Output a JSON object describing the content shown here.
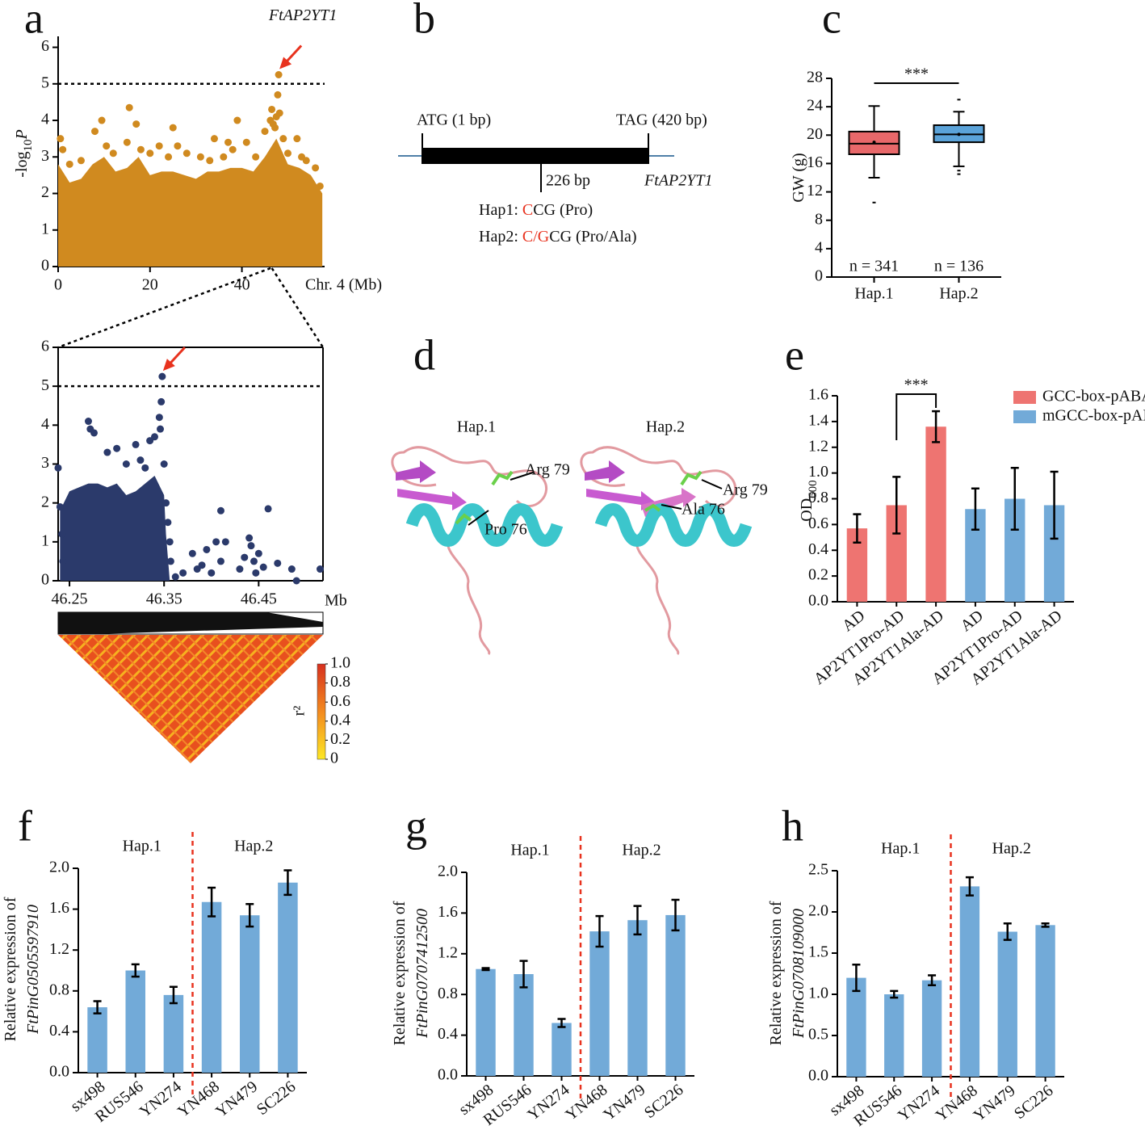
{
  "chart_data": [
    {
      "panel": "a",
      "type": "scatter",
      "ylabel": [
        {
          "text": "-log"
        },
        {
          "text": "10",
          "style": "sub"
        },
        {
          "text": "P",
          "style": "italic"
        }
      ],
      "xlabel": "Chr. 4 (Mb)",
      "xlim": [
        0,
        58
      ],
      "ylim": [
        0,
        6.3
      ],
      "xticks": [
        0,
        20,
        40
      ],
      "yticks": [
        0,
        1,
        2,
        3,
        4,
        5,
        6
      ],
      "threshold": 5,
      "annotation": "FtAP2YT1",
      "color": "#d08a1f",
      "band": {
        "x": [
          0,
          2.5,
          5,
          7.5,
          10,
          12.5,
          15,
          17.5,
          20,
          22.5,
          25,
          27.5,
          30,
          32.5,
          35,
          37.5,
          40,
          42.5,
          45,
          47.5,
          50,
          52.5,
          55,
          57.5
        ],
        "values": [
          2.8,
          2.3,
          2.4,
          2.8,
          3.0,
          2.6,
          2.7,
          3.0,
          2.5,
          2.6,
          2.6,
          2.5,
          2.4,
          2.6,
          2.6,
          2.7,
          2.7,
          2.6,
          3.0,
          3.5,
          2.8,
          2.7,
          2.5,
          2.0
        ]
      },
      "points": {
        "x": [
          0.5,
          1,
          2.5,
          5,
          8,
          9.5,
          10.5,
          12,
          15,
          15.5,
          17,
          18,
          20,
          22,
          24,
          25,
          26,
          28,
          31,
          33,
          34,
          36,
          37,
          38,
          39,
          41,
          43,
          45,
          46.2,
          46.5,
          46.8,
          47.2,
          47.5,
          47.8,
          48,
          48.2,
          49,
          50,
          52,
          53,
          54,
          56,
          57
        ],
        "values": [
          3.5,
          3.2,
          2.8,
          2.9,
          3.7,
          4.0,
          3.3,
          3.1,
          3.4,
          4.35,
          3.9,
          3.2,
          3.1,
          3.3,
          3.0,
          3.8,
          3.3,
          3.1,
          3.0,
          2.9,
          3.5,
          3.0,
          3.4,
          3.2,
          4.0,
          3.4,
          3.0,
          3.7,
          4.0,
          4.3,
          3.9,
          3.8,
          4.1,
          4.7,
          5.25,
          4.2,
          3.5,
          3.1,
          3.5,
          3.0,
          2.9,
          2.7,
          2.2
        ]
      }
    },
    {
      "type": "scatter",
      "frame": "box",
      "xlabel": "Mb",
      "xlim": [
        46.238,
        46.518
      ],
      "ylim": [
        0,
        6
      ],
      "xticks": [
        46.25,
        46.35,
        46.45
      ],
      "yticks": [
        0,
        1,
        2,
        3,
        4,
        5,
        6
      ],
      "threshold": 5,
      "color": "#2b3a6b",
      "band": {
        "x": [
          46.24,
          46.25,
          46.26,
          46.27,
          46.28,
          46.29,
          46.3,
          46.31,
          46.32,
          46.33,
          46.34,
          46.35,
          46.352,
          46.356
        ],
        "values": [
          1.8,
          2.3,
          2.4,
          2.5,
          2.5,
          2.4,
          2.5,
          2.2,
          2.3,
          2.5,
          2.7,
          2.2,
          1.2,
          0
        ]
      },
      "points": {
        "x": [
          46.238,
          46.24,
          46.242,
          46.243,
          46.27,
          46.272,
          46.276,
          46.29,
          46.3,
          46.31,
          46.32,
          46.325,
          46.33,
          46.335,
          46.34,
          46.345,
          46.347,
          46.348,
          46.346,
          46.35,
          46.352,
          46.354,
          46.356,
          46.357,
          46.362,
          46.37,
          46.38,
          46.385,
          46.39,
          46.395,
          46.4,
          46.405,
          46.41,
          46.41,
          46.415,
          46.43,
          46.435,
          46.44,
          46.442,
          46.445,
          46.447,
          46.45,
          46.455,
          46.46,
          46.47,
          46.485,
          46.49,
          46.515
        ],
        "values": [
          2.9,
          1.9,
          1.2,
          0.5,
          4.1,
          3.9,
          3.8,
          3.3,
          3.4,
          3.0,
          3.5,
          3.1,
          2.9,
          3.6,
          3.7,
          4.2,
          4.6,
          5.25,
          3.9,
          3.0,
          2.0,
          1.5,
          1.0,
          0.5,
          0.1,
          0.2,
          0.7,
          0.3,
          0.4,
          0.8,
          0.2,
          1.0,
          0.5,
          1.8,
          1.0,
          0.3,
          0.6,
          1.1,
          0.9,
          0.5,
          0.2,
          0.7,
          0.35,
          1.85,
          0.45,
          0.3,
          0,
          0.3
        ]
      }
    },
    {
      "panel": "c",
      "type": "box",
      "ylabel": [
        {
          "text": "GW (g)"
        }
      ],
      "categories": [
        "Hap.1",
        "Hap.2"
      ],
      "colors": [
        "#e8686a",
        "#5ba3d9"
      ],
      "boxes": [
        {
          "min": 14,
          "q1": 17.3,
          "median": 18.8,
          "q3": 20.5,
          "max": 24.1,
          "mean": 19.0,
          "outliers": [
            10.5
          ]
        },
        {
          "min": 15.6,
          "q1": 19,
          "median": 20.1,
          "q3": 21.4,
          "max": 23.3,
          "mean": 20.1,
          "outliers": [
            14.5,
            15.0,
            25.0
          ]
        }
      ],
      "n_labels": [
        "n = 341",
        "n = 136"
      ],
      "significance": "***",
      "ylim": [
        0,
        28
      ],
      "yticks": [
        0,
        4,
        8,
        12,
        16,
        20,
        24,
        28
      ]
    },
    {
      "panel": "e",
      "type": "bar",
      "ylabel": [
        {
          "text": "OD"
        },
        {
          "text": "600",
          "style": "sub"
        }
      ],
      "categories": [
        "AD",
        "AP2YT1Pro-AD",
        "AP2YT1Ala-AD",
        "AD",
        "AP2YT1Pro-AD",
        "AP2YT1Ala-AD"
      ],
      "series": [
        {
          "name": "GCC-box-pABAi",
          "color": "#ee7471",
          "values": [
            0.57,
            0.75,
            1.36,
            null,
            null,
            null
          ],
          "errors": [
            0.11,
            0.22,
            0.12,
            null,
            null,
            null
          ]
        },
        {
          "name": "mGCC-box-pABAi",
          "color": "#72aad8",
          "values": [
            null,
            null,
            null,
            0.72,
            0.8,
            0.75
          ],
          "errors": [
            null,
            null,
            null,
            0.16,
            0.24,
            0.26
          ]
        }
      ],
      "significance": "***",
      "ylim": [
        0,
        1.6
      ],
      "yticks": [
        {
          "value": 0,
          "label": "0.0"
        },
        0.2,
        0.4,
        0.6,
        0.8,
        {
          "value": 1,
          "label": "1.0"
        },
        1.2,
        1.4,
        1.6
      ]
    },
    {
      "panel": "f",
      "type": "bar",
      "ylabel": [
        {
          "text": "Relative expression of"
        },
        {
          "text": "FtPinG0505597910",
          "style": "italic line"
        }
      ],
      "categories": [
        "sx498",
        "RUS546",
        "YN274",
        "YN468",
        "YN479",
        "SC226"
      ],
      "group_labels": [
        "Hap.1",
        "Hap.2"
      ],
      "divider_color": "#e8321e",
      "series": [
        {
          "color": "#72aad8",
          "values": [
            0.64,
            1.0,
            0.76,
            1.67,
            1.54,
            1.86
          ],
          "errors": [
            0.06,
            0.06,
            0.08,
            0.14,
            0.11,
            0.12
          ]
        }
      ],
      "ylim": [
        0,
        2
      ],
      "yticks": [
        {
          "value": 0,
          "label": "0.0"
        },
        0.4,
        0.8,
        1.2,
        1.6,
        {
          "value": 2,
          "label": "2.0"
        }
      ]
    },
    {
      "panel": "g",
      "type": "bar",
      "ylabel": [
        {
          "text": "Relative expression of"
        },
        {
          "text": "FtPinG0707412500",
          "style": "italic line"
        }
      ],
      "categories": [
        "sx498",
        "RUS546",
        "YN274",
        "YN468",
        "YN479",
        "SC226"
      ],
      "group_labels": [
        "Hap.1",
        "Hap.2"
      ],
      "divider_color": "#e8321e",
      "series": [
        {
          "color": "#72aad8",
          "values": [
            1.05,
            1.0,
            0.52,
            1.42,
            1.53,
            1.58
          ],
          "errors": [
            0.01,
            0.13,
            0.04,
            0.15,
            0.14,
            0.15
          ]
        }
      ],
      "ylim": [
        0,
        2
      ],
      "yticks": [
        {
          "value": 0,
          "label": "0.0"
        },
        0.4,
        0.8,
        1.2,
        1.6,
        {
          "value": 2,
          "label": "2.0"
        }
      ]
    },
    {
      "panel": "h",
      "type": "bar",
      "ylabel": [
        {
          "text": "Relative expression of"
        },
        {
          "text": "FtPinG0708109000",
          "style": "italic line"
        }
      ],
      "categories": [
        "sx498",
        "RUS546",
        "YN274",
        "YN468",
        "YN479",
        "SC226"
      ],
      "group_labels": [
        "Hap.1",
        "Hap.2"
      ],
      "divider_color": "#e8321e",
      "series": [
        {
          "color": "#72aad8",
          "values": [
            1.2,
            1.0,
            1.17,
            2.31,
            1.76,
            1.84
          ],
          "errors": [
            0.16,
            0.04,
            0.06,
            0.11,
            0.1,
            0.02
          ]
        }
      ],
      "ylim": [
        0,
        2.5
      ],
      "yticks": [
        {
          "value": 0,
          "label": "0.0"
        },
        0.5,
        {
          "value": 1,
          "label": "1.0"
        },
        1.5,
        {
          "value": 2,
          "label": "2.0"
        },
        2.5
      ]
    }
  ],
  "gene_diagram": {
    "panel": "b",
    "start_label": "ATG (1 bp)",
    "end_label": "TAG (420 bp)",
    "site_label": "226 bp",
    "gene": "FtAP2YT1",
    "haplotypes": [
      [
        "Hap1: ",
        "C",
        "CG (Pro)"
      ],
      [
        "Hap2: ",
        "C/G",
        "CG (Pro/Ala)"
      ]
    ]
  },
  "structure": {
    "panel": "d",
    "models": [
      {
        "title": "Hap.1",
        "residues": [
          "Arg 79",
          "Pro 76"
        ]
      },
      {
        "title": "Hap.2",
        "residues": [
          "Arg 79",
          "Ala 76"
        ]
      }
    ]
  },
  "ld_heatmap": {
    "colorbar_label": "r²",
    "clim": [
      0,
      1
    ],
    "colorbar_ticks": [
      0,
      0.2,
      0.4,
      0.6,
      0.8,
      {
        "value": 1,
        "label": "1.0"
      }
    ]
  }
}
